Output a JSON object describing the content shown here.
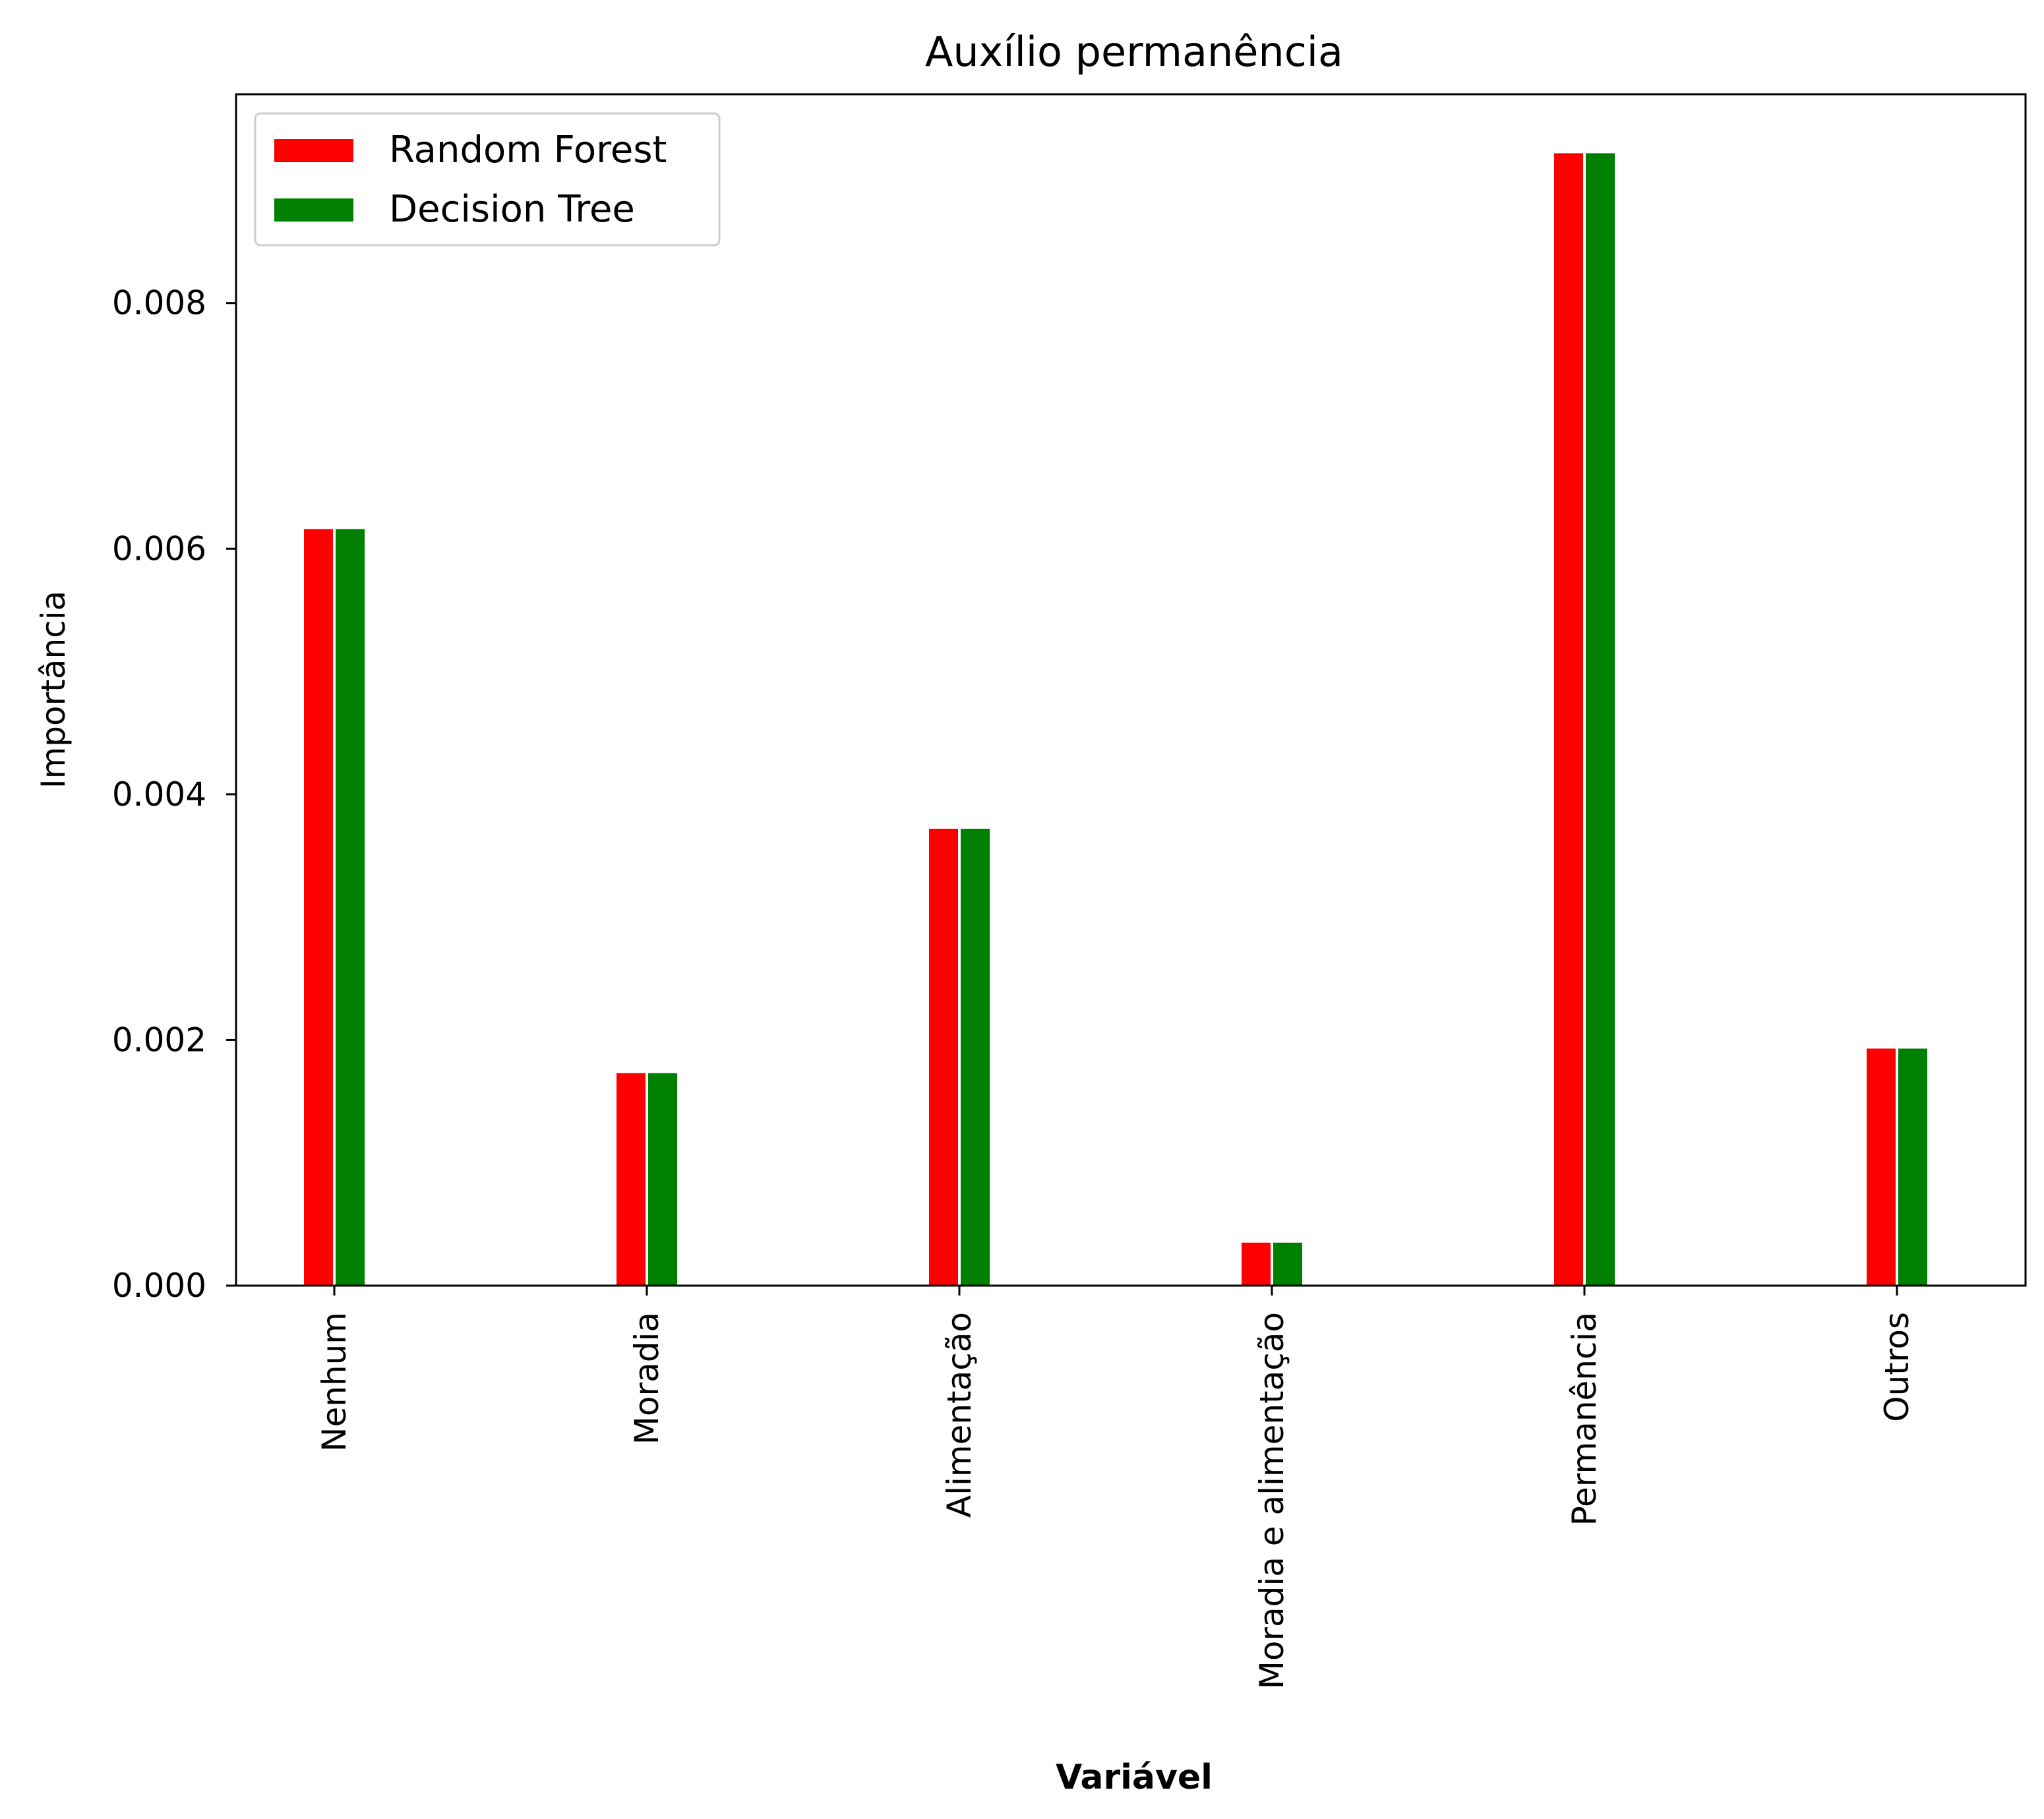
{
  "chart_data": {
    "type": "bar",
    "title": "Auxílio permanência",
    "xlabel": "Variável",
    "ylabel": "Importância",
    "categories": [
      "Nenhum",
      "Moradia",
      "Alimentação",
      "Moradia e alimentação",
      "Permanência",
      "Outros"
    ],
    "series": [
      {
        "name": "Random Forest",
        "color": "#ff0000",
        "values": [
          0.00616,
          0.00173,
          0.00372,
          0.00035,
          0.00922,
          0.00193
        ]
      },
      {
        "name": "Decision Tree",
        "color": "#008000",
        "values": [
          0.00616,
          0.00173,
          0.00372,
          0.00035,
          0.00922,
          0.00193
        ]
      }
    ],
    "ylim": [
      0,
      0.0097
    ],
    "yticks": [
      0.0,
      0.002,
      0.004,
      0.006,
      0.008
    ],
    "ytick_labels": [
      "0.000",
      "0.002",
      "0.004",
      "0.006",
      "0.008"
    ],
    "grid": false,
    "legend_position": "top-left"
  }
}
